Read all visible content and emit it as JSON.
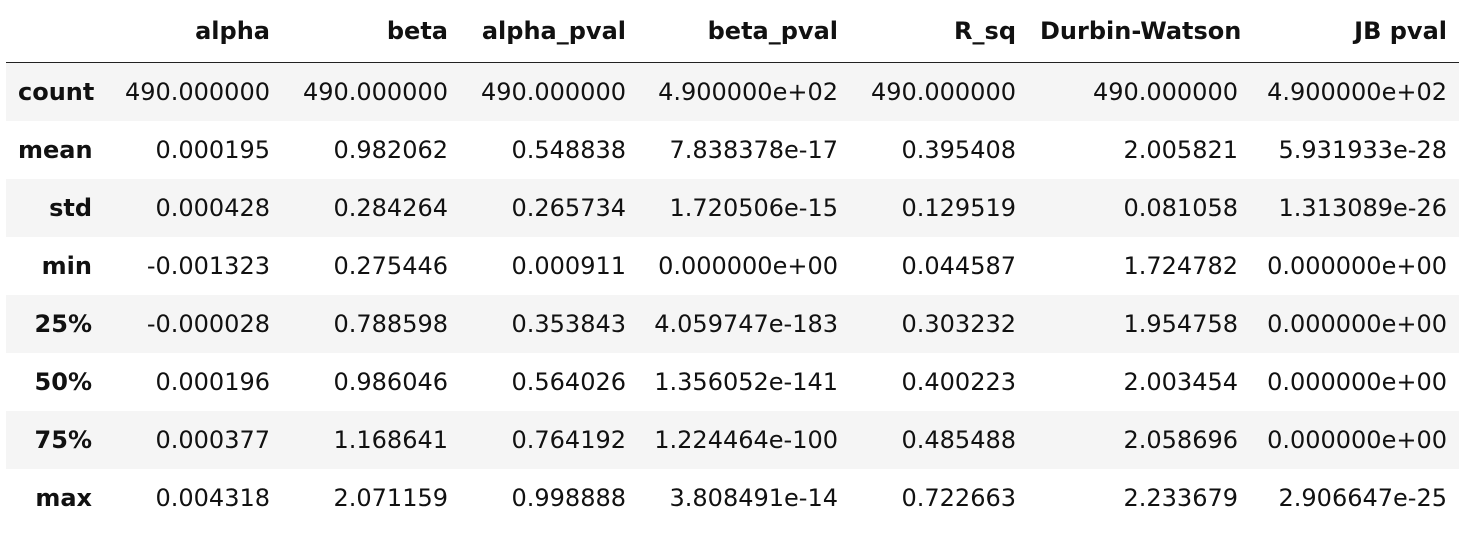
{
  "table": {
    "columns": [
      "alpha",
      "beta",
      "alpha_pval",
      "beta_pval",
      "R_sq",
      "Durbin-Watson",
      "JB pval"
    ],
    "rows": [
      {
        "label": "count",
        "cells": [
          "490.000000",
          "490.000000",
          "490.000000",
          "4.900000e+02",
          "490.000000",
          "490.000000",
          "4.900000e+02"
        ]
      },
      {
        "label": "mean",
        "cells": [
          "0.000195",
          "0.982062",
          "0.548838",
          "7.838378e-17",
          "0.395408",
          "2.005821",
          "5.931933e-28"
        ]
      },
      {
        "label": "std",
        "cells": [
          "0.000428",
          "0.284264",
          "0.265734",
          "1.720506e-15",
          "0.129519",
          "0.081058",
          "1.313089e-26"
        ]
      },
      {
        "label": "min",
        "cells": [
          "-0.001323",
          "0.275446",
          "0.000911",
          "0.000000e+00",
          "0.044587",
          "1.724782",
          "0.000000e+00"
        ]
      },
      {
        "label": "25%",
        "cells": [
          "-0.000028",
          "0.788598",
          "0.353843",
          "4.059747e-183",
          "0.303232",
          "1.954758",
          "0.000000e+00"
        ]
      },
      {
        "label": "50%",
        "cells": [
          "0.000196",
          "0.986046",
          "0.564026",
          "1.356052e-141",
          "0.400223",
          "2.003454",
          "0.000000e+00"
        ]
      },
      {
        "label": "75%",
        "cells": [
          "0.000377",
          "1.168641",
          "0.764192",
          "1.224464e-100",
          "0.485488",
          "2.058696",
          "0.000000e+00"
        ]
      },
      {
        "label": "max",
        "cells": [
          "0.004318",
          "2.071159",
          "0.998888",
          "3.808491e-14",
          "0.722663",
          "2.233679",
          "2.906647e-25"
        ]
      }
    ]
  }
}
